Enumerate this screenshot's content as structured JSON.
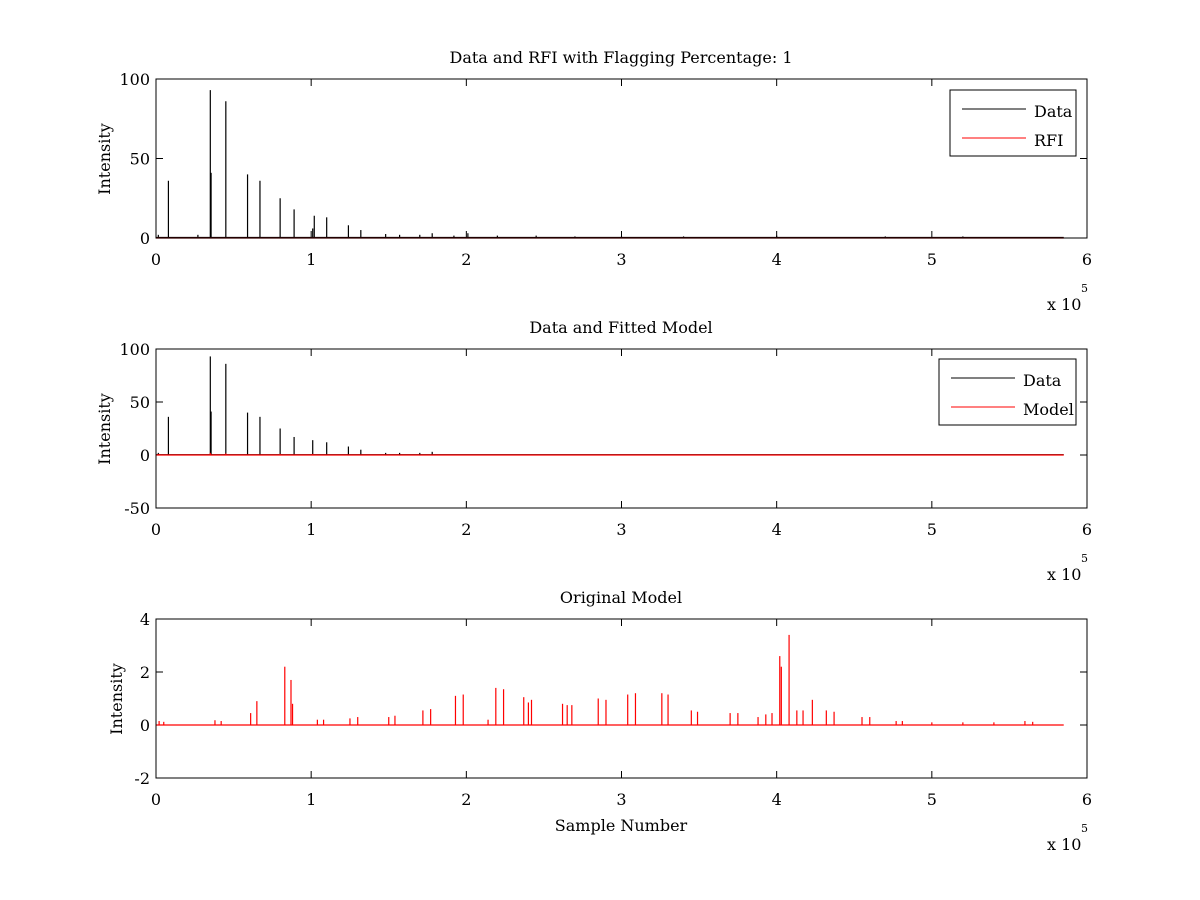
{
  "figure": {
    "background": "#ffffff",
    "data_color": "#000000",
    "model_color": "#ff0000"
  },
  "chart_data": [
    {
      "type": "line",
      "title": "Data and RFI with Flagging Percentage: 1",
      "xlabel": "",
      "ylabel": "Intensity",
      "xlim": [
        0,
        600000
      ],
      "ylim": [
        0,
        100
      ],
      "xticks": [
        0,
        100000,
        200000,
        300000,
        400000,
        500000,
        600000
      ],
      "xtick_labels": [
        "0",
        "1",
        "2",
        "3",
        "4",
        "5",
        "6"
      ],
      "x_multiplier": "x 10",
      "x_multiplier_exp": "5",
      "yticks": [
        0,
        50,
        100
      ],
      "ytick_labels": [
        "0",
        "50",
        "100"
      ],
      "grid": false,
      "legend_position": "top-right",
      "series": [
        {
          "name": "Data",
          "color": "#000000",
          "baseline": 0.3,
          "x_end": 585000,
          "spikes": [
            [
              1500,
              2
            ],
            [
              8000,
              36
            ],
            [
              27000,
              2
            ],
            [
              35000,
              93
            ],
            [
              35500,
              41
            ],
            [
              45000,
              86
            ],
            [
              59000,
              40
            ],
            [
              67000,
              36
            ],
            [
              80000,
              25
            ],
            [
              89000,
              18
            ],
            [
              101000,
              6
            ],
            [
              102000,
              14
            ],
            [
              110000,
              13
            ],
            [
              124000,
              8
            ],
            [
              132000,
              5
            ],
            [
              148000,
              2.5
            ],
            [
              157000,
              2
            ],
            [
              170000,
              2
            ],
            [
              178000,
              3
            ],
            [
              192000,
              1.5
            ],
            [
              201000,
              3
            ],
            [
              220000,
              1.5
            ],
            [
              245000,
              1.5
            ],
            [
              270000,
              1
            ],
            [
              300000,
              1
            ],
            [
              340000,
              1
            ],
            [
              400000,
              1.5
            ],
            [
              470000,
              1
            ],
            [
              520000,
              1
            ]
          ]
        },
        {
          "name": "RFI",
          "color": "#ff0000",
          "baseline": 0,
          "x_end": 585000,
          "spikes": []
        }
      ]
    },
    {
      "type": "line",
      "title": "Data and Fitted Model",
      "xlabel": "",
      "ylabel": "Intensity",
      "xlim": [
        0,
        600000
      ],
      "ylim": [
        -50,
        100
      ],
      "xticks": [
        0,
        100000,
        200000,
        300000,
        400000,
        500000,
        600000
      ],
      "xtick_labels": [
        "0",
        "1",
        "2",
        "3",
        "4",
        "5",
        "6"
      ],
      "x_multiplier": "x 10",
      "x_multiplier_exp": "5",
      "yticks": [
        -50,
        0,
        50,
        100
      ],
      "ytick_labels": [
        "-50",
        "0",
        "50",
        "100"
      ],
      "grid": false,
      "legend_position": "top-right",
      "series": [
        {
          "name": "Data",
          "color": "#000000",
          "baseline": 0.3,
          "x_end": 585000,
          "spikes": [
            [
              1500,
              2
            ],
            [
              8000,
              36
            ],
            [
              35000,
              93
            ],
            [
              35500,
              41
            ],
            [
              45000,
              86
            ],
            [
              59000,
              40
            ],
            [
              67000,
              36
            ],
            [
              80000,
              25
            ],
            [
              89000,
              17
            ],
            [
              101000,
              14
            ],
            [
              110000,
              12
            ],
            [
              124000,
              8
            ],
            [
              132000,
              5
            ],
            [
              148000,
              2
            ],
            [
              157000,
              2
            ],
            [
              170000,
              2
            ],
            [
              178000,
              3
            ]
          ]
        },
        {
          "name": "Model",
          "color": "#ff0000",
          "baseline": 0,
          "x_end": 585000,
          "spikes": [
            [
              2000,
              1
            ],
            [
              35000,
              2
            ],
            [
              45000,
              1.5
            ],
            [
              80000,
              1
            ],
            [
              101000,
              1
            ]
          ]
        }
      ]
    },
    {
      "type": "line",
      "title": "Original Model",
      "xlabel": "Sample Number",
      "ylabel": "Intensity",
      "xlim": [
        0,
        600000
      ],
      "ylim": [
        -2,
        4
      ],
      "xticks": [
        0,
        100000,
        200000,
        300000,
        400000,
        500000,
        600000
      ],
      "xtick_labels": [
        "0",
        "1",
        "2",
        "3",
        "4",
        "5",
        "6"
      ],
      "x_multiplier": "x 10",
      "x_multiplier_exp": "5",
      "yticks": [
        -2,
        0,
        2,
        4
      ],
      "ytick_labels": [
        "-2",
        "0",
        "2",
        "4"
      ],
      "grid": false,
      "legend_position": "none",
      "series": [
        {
          "name": "",
          "color": "#ff0000",
          "baseline": 0,
          "x_end": 585000,
          "spikes": [
            [
              2000,
              0.15
            ],
            [
              5000,
              0.12
            ],
            [
              38000,
              0.18
            ],
            [
              42000,
              0.15
            ],
            [
              61000,
              0.45
            ],
            [
              65000,
              0.9
            ],
            [
              83000,
              2.2
            ],
            [
              87000,
              1.7
            ],
            [
              88000,
              0.8
            ],
            [
              104000,
              0.2
            ],
            [
              108000,
              0.2
            ],
            [
              125000,
              0.25
            ],
            [
              130000,
              0.3
            ],
            [
              150000,
              0.3
            ],
            [
              154000,
              0.35
            ],
            [
              172000,
              0.55
            ],
            [
              177000,
              0.6
            ],
            [
              193000,
              1.1
            ],
            [
              198000,
              1.15
            ],
            [
              214000,
              0.2
            ],
            [
              219000,
              1.4
            ],
            [
              224000,
              1.35
            ],
            [
              237000,
              1.05
            ],
            [
              240000,
              0.85
            ],
            [
              242000,
              0.95
            ],
            [
              262000,
              0.8
            ],
            [
              265000,
              0.75
            ],
            [
              268000,
              0.75
            ],
            [
              285000,
              1.0
            ],
            [
              290000,
              0.95
            ],
            [
              304000,
              1.15
            ],
            [
              309000,
              1.2
            ],
            [
              326000,
              1.2
            ],
            [
              330000,
              1.15
            ],
            [
              345000,
              0.55
            ],
            [
              349000,
              0.5
            ],
            [
              370000,
              0.45
            ],
            [
              375000,
              0.45
            ],
            [
              388000,
              0.3
            ],
            [
              393000,
              0.4
            ],
            [
              397000,
              0.45
            ],
            [
              402000,
              2.6
            ],
            [
              403000,
              2.2
            ],
            [
              408000,
              3.4
            ],
            [
              413000,
              0.55
            ],
            [
              417000,
              0.55
            ],
            [
              423000,
              0.95
            ],
            [
              432000,
              0.55
            ],
            [
              437000,
              0.5
            ],
            [
              455000,
              0.3
            ],
            [
              460000,
              0.3
            ],
            [
              477000,
              0.15
            ],
            [
              481000,
              0.15
            ],
            [
              500000,
              0.1
            ],
            [
              520000,
              0.1
            ],
            [
              540000,
              0.1
            ],
            [
              560000,
              0.15
            ],
            [
              565000,
              0.12
            ]
          ]
        }
      ]
    }
  ]
}
